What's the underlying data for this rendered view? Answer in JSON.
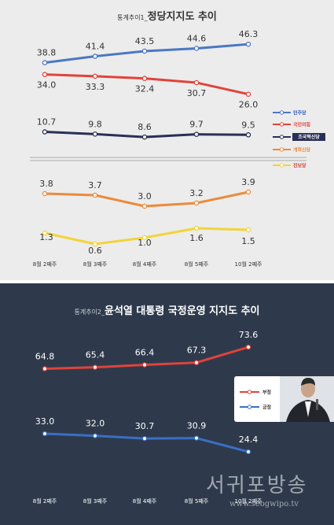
{
  "chart_data": [
    {
      "type": "line",
      "title_prefix": "통계추이1_",
      "title": "정당지지도 추이",
      "categories": [
        "8월 2째주",
        "8월 3째주",
        "8월 4째주",
        "8월 5째주",
        "10월 2째주"
      ],
      "series": [
        {
          "name": "민주당",
          "legend_text": "민주당",
          "color": "#4a78c4",
          "values": [
            38.8,
            41.4,
            43.5,
            44.6,
            46.3
          ]
        },
        {
          "name": "국민의힘",
          "legend_text": "국민의힘",
          "color": "#e0433b",
          "values": [
            34.0,
            33.3,
            32.4,
            30.7,
            26.0
          ]
        },
        {
          "name": "조국혁신당",
          "legend_text": "조국혁신당",
          "color": "#2a2f55",
          "values": [
            10.7,
            9.8,
            8.6,
            9.7,
            9.5
          ]
        },
        {
          "name": "개혁신당",
          "legend_text": "개혁신당",
          "color": "#ec8a3a",
          "values": [
            3.8,
            3.7,
            3.0,
            3.2,
            3.9
          ]
        },
        {
          "name": "진보당",
          "legend_text": "진보당",
          "color": "#f2d43a",
          "values": [
            1.3,
            0.6,
            1.0,
            1.6,
            1.5
          ]
        }
      ],
      "axis_break": true
    },
    {
      "type": "line",
      "title_prefix": "통계추이2_",
      "title": "윤석열 대통령 국정운영 지지도 추이",
      "categories": [
        "8월 2째주",
        "8월 3째주",
        "8월 4째주",
        "8월 5째주",
        "10월 2째주"
      ],
      "series": [
        {
          "name": "부정",
          "color": "#e0433b",
          "values": [
            64.8,
            65.4,
            66.4,
            67.3,
            73.6
          ]
        },
        {
          "name": "긍정",
          "color": "#3a6fc4",
          "values": [
            33.0,
            32.0,
            30.7,
            30.9,
            24.4
          ]
        }
      ]
    }
  ],
  "watermark": {
    "text": "서귀포방송",
    "url": "www.seogwipo.tv"
  }
}
